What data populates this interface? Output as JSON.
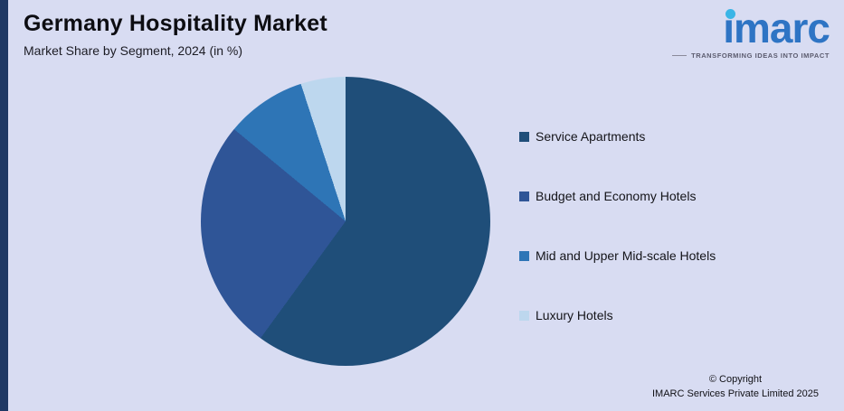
{
  "header": {
    "title": "Germany Hospitality Market",
    "subtitle": "Market Share by Segment, 2024 (in %)"
  },
  "brand": {
    "name": "imarc",
    "tagline": "TRANSFORMING IDEAS INTO IMPACT"
  },
  "footer": {
    "copyright_line1": "© Copyright",
    "copyright_line2": "IMARC Services Private Limited 2025"
  },
  "chart_data": {
    "type": "pie",
    "title": "Germany Hospitality Market",
    "subtitle": "Market Share by Segment, 2024 (in %)",
    "labels": [
      "Service Apartments",
      "Budget and Economy Hotels",
      "Mid and Upper Mid-scale Hotels",
      "Luxury Hotels"
    ],
    "values": [
      60,
      26,
      9,
      5
    ],
    "colors": [
      "#1f4e79",
      "#2f5597",
      "#2e75b6",
      "#bdd7ee"
    ],
    "start_angle_deg": 0,
    "direction": "clockwise",
    "legend_position": "right",
    "data_labels": false
  }
}
